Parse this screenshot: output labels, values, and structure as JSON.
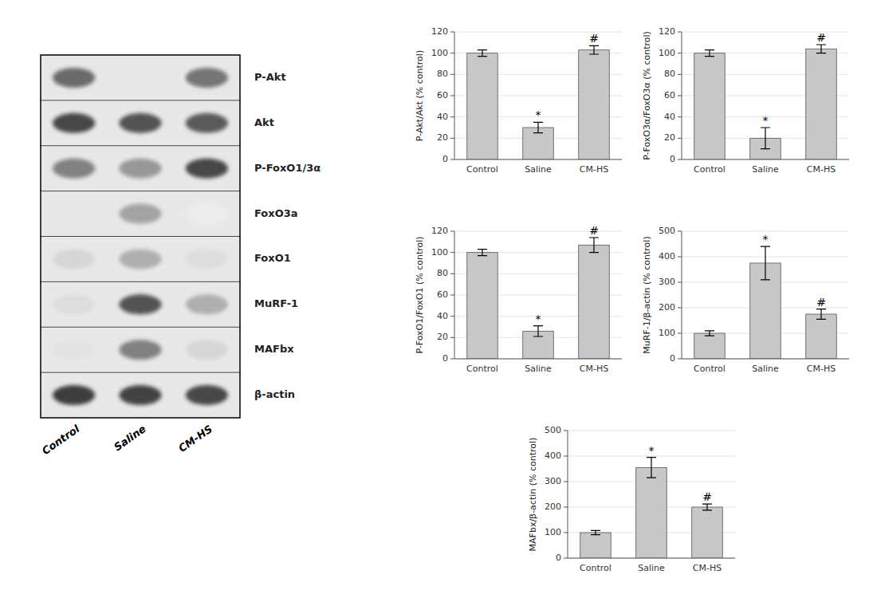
{
  "chart_data": [
    {
      "type": "heatmap",
      "categories": [
        "Control",
        "Saline",
        "CM-HS"
      ],
      "series": [
        {
          "name": "P-Akt",
          "values": [
            0.65,
            0.1,
            0.6
          ]
        },
        {
          "name": "Akt",
          "values": [
            0.8,
            0.75,
            0.72
          ]
        },
        {
          "name": "P-FoxO1/3α",
          "values": [
            0.55,
            0.45,
            0.8
          ]
        },
        {
          "name": "FoxO3a",
          "values": [
            0.1,
            0.4,
            0.08
          ]
        },
        {
          "name": "FoxO1",
          "values": [
            0.18,
            0.35,
            0.15
          ]
        },
        {
          "name": "MuRF-1",
          "values": [
            0.15,
            0.75,
            0.35
          ]
        },
        {
          "name": "MAFbx",
          "values": [
            0.12,
            0.55,
            0.18
          ]
        },
        {
          "name": "β-actin",
          "values": [
            0.85,
            0.82,
            0.8
          ]
        }
      ]
    },
    {
      "type": "bar",
      "categories": [
        "Control",
        "Saline",
        "CM-HS"
      ],
      "color": "#c8c8c8",
      "ylabel": "P-Akt/Akt (% control)",
      "ylim": [
        0,
        120
      ],
      "yticks": [
        0,
        20,
        40,
        60,
        80,
        100,
        120
      ],
      "values": [
        100,
        30,
        103
      ],
      "errors": [
        3,
        5,
        4
      ],
      "annotations": [
        null,
        "*",
        "#"
      ]
    },
    {
      "type": "bar",
      "categories": [
        "Control",
        "Saline",
        "CM-HS"
      ],
      "color": "#c8c8c8",
      "ylabel": "P-FoxO3α/FoxO3α (% control)",
      "ylim": [
        0,
        120
      ],
      "yticks": [
        0,
        20,
        40,
        60,
        80,
        100,
        120
      ],
      "values": [
        100,
        20,
        104
      ],
      "errors": [
        3,
        10,
        4
      ],
      "annotations": [
        null,
        "*",
        "#"
      ]
    },
    {
      "type": "bar",
      "categories": [
        "Control",
        "Saline",
        "CM-HS"
      ],
      "color": "#c8c8c8",
      "ylabel": "P-FoxO1/FoxO1 (% control)",
      "ylim": [
        0,
        120
      ],
      "yticks": [
        0,
        20,
        40,
        60,
        80,
        100,
        120
      ],
      "values": [
        100,
        26,
        107
      ],
      "errors": [
        3,
        5,
        7
      ],
      "annotations": [
        null,
        "*",
        "#"
      ]
    },
    {
      "type": "bar",
      "categories": [
        "Control",
        "Saline",
        "CM-HS"
      ],
      "color": "#c8c8c8",
      "ylabel": "MuRF-1/β-actin (% control)",
      "ylim": [
        0,
        500
      ],
      "yticks": [
        0,
        100,
        200,
        300,
        400,
        500
      ],
      "values": [
        100,
        375,
        175
      ],
      "errors": [
        10,
        65,
        20
      ],
      "annotations": [
        null,
        "*",
        "#"
      ]
    },
    {
      "type": "bar",
      "categories": [
        "Control",
        "Saline",
        "CM-HS"
      ],
      "color": "#c8c8c8",
      "ylabel": "MAFbx/β-actin (% control)",
      "ylim": [
        0,
        500
      ],
      "yticks": [
        0,
        100,
        200,
        300,
        400,
        500
      ],
      "values": [
        100,
        355,
        200
      ],
      "errors": [
        8,
        40,
        12
      ],
      "annotations": [
        null,
        "*",
        "#"
      ]
    }
  ]
}
